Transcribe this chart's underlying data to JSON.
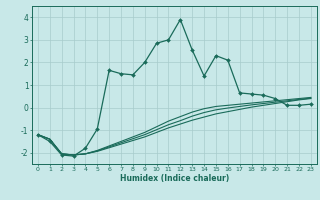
{
  "xlabel": "Humidex (Indice chaleur)",
  "background_color": "#c8e8e8",
  "grid_color": "#a8cccc",
  "line_color": "#1a6b5a",
  "x_values": [
    0,
    1,
    2,
    3,
    4,
    5,
    6,
    7,
    8,
    9,
    10,
    11,
    12,
    13,
    14,
    15,
    16,
    17,
    18,
    19,
    20,
    21,
    22,
    23
  ],
  "series1": [
    -1.2,
    -1.5,
    -2.1,
    -2.15,
    -1.8,
    -0.95,
    1.65,
    1.5,
    1.45,
    2.0,
    2.85,
    3.0,
    3.9,
    2.55,
    1.4,
    2.3,
    2.1,
    0.65,
    0.6,
    0.55,
    0.4,
    0.1,
    0.1,
    0.15
  ],
  "series_line1": [
    -1.2,
    -1.4,
    -2.05,
    -2.1,
    -2.05,
    -1.9,
    -1.7,
    -1.5,
    -1.3,
    -1.1,
    -0.85,
    -0.6,
    -0.4,
    -0.2,
    -0.05,
    0.05,
    0.1,
    0.15,
    0.2,
    0.25,
    0.3,
    0.35,
    0.4,
    0.45
  ],
  "series_line2": [
    -1.2,
    -1.4,
    -2.05,
    -2.1,
    -2.05,
    -1.92,
    -1.74,
    -1.56,
    -1.38,
    -1.2,
    -0.98,
    -0.76,
    -0.58,
    -0.38,
    -0.22,
    -0.1,
    -0.02,
    0.05,
    0.12,
    0.18,
    0.24,
    0.3,
    0.36,
    0.42
  ],
  "series_line3": [
    -1.2,
    -1.4,
    -2.05,
    -2.1,
    -2.05,
    -1.94,
    -1.78,
    -1.62,
    -1.46,
    -1.3,
    -1.1,
    -0.9,
    -0.73,
    -0.56,
    -0.42,
    -0.28,
    -0.18,
    -0.08,
    0.02,
    0.1,
    0.18,
    0.26,
    0.34,
    0.4
  ],
  "ylim": [
    -2.5,
    4.5
  ],
  "xlim": [
    -0.5,
    23.5
  ],
  "yticks": [
    -2,
    -1,
    0,
    1,
    2,
    3,
    4
  ]
}
